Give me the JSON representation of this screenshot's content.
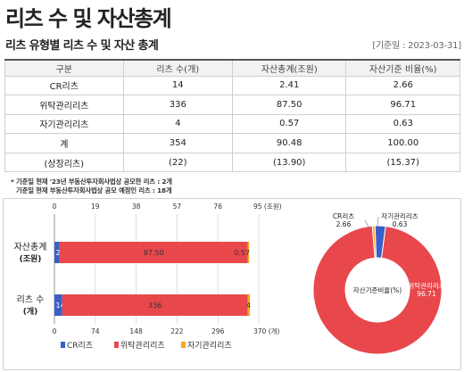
{
  "header": {
    "page_title": "리츠 수 및 자산총계",
    "section_title": "리츠 유형별 리츠 수 및 자산 총계",
    "base_date": "[기준일 : 2023-03-31]"
  },
  "table": {
    "columns": [
      "구분",
      "리츠 수(개)",
      "자산총계(조원)",
      "자산기준 비율(%)"
    ],
    "rows": [
      [
        "CR리츠",
        "14",
        "2.41",
        "2.66"
      ],
      [
        "위탁관리리츠",
        "336",
        "87.50",
        "96.71"
      ],
      [
        "자기관리리츠",
        "4",
        "0.57",
        "0.63"
      ],
      [
        "계",
        "354",
        "90.48",
        "100.00"
      ],
      [
        "(상장리츠)",
        "(22)",
        "(13.90)",
        "(15.37)"
      ]
    ]
  },
  "notes": [
    "* 기준일 현재 '23년 부동산투자회사법상 공모한 리츠 : 2개",
    "기준일 현재 부동산투자회사법상 공모 예정인 리츠 : 18개"
  ],
  "colors": {
    "cr": "#3a5fc8",
    "trust": "#e8474c",
    "self": "#f5a623",
    "grid": "#dddddd"
  },
  "chart_data": [
    {
      "type": "bar",
      "orientation": "horizontal",
      "stacked": true,
      "categories": [
        {
          "line1": "자산총계",
          "line2": "(조원)"
        },
        {
          "line1": "리츠 수",
          "line2": "(개)"
        }
      ],
      "series": [
        {
          "name": "CR리츠",
          "color_key": "cr",
          "values": [
            2.41,
            14
          ],
          "labels": [
            "2.41",
            "14"
          ]
        },
        {
          "name": "위탁관리리츠",
          "color_key": "trust",
          "values": [
            87.5,
            336
          ],
          "labels": [
            "87.50",
            "336"
          ]
        },
        {
          "name": "자기관리리츠",
          "color_key": "self",
          "values": [
            0.57,
            4
          ],
          "labels": [
            "0.57",
            "4"
          ]
        }
      ],
      "top_axis": {
        "ticks": [
          "0",
          "19",
          "38",
          "57",
          "76",
          "95 (조원)"
        ],
        "max": 95
      },
      "bottom_axis": {
        "ticks": [
          "0",
          "74",
          "148",
          "222",
          "296",
          "370 (개)"
        ],
        "max": 370
      },
      "legend_position": "bottom"
    },
    {
      "type": "pie",
      "donut": true,
      "center_label": "자산기준비율(%)",
      "slices": [
        {
          "name": "CR리츠",
          "value": 2.66,
          "label": "2.66",
          "color_key": "cr"
        },
        {
          "name": "위탁관리리츠",
          "value": 96.71,
          "label": "96.71",
          "color_key": "trust"
        },
        {
          "name": "자기관리리츠",
          "value": 0.63,
          "label": "0.63",
          "color_key": "self"
        }
      ]
    }
  ]
}
